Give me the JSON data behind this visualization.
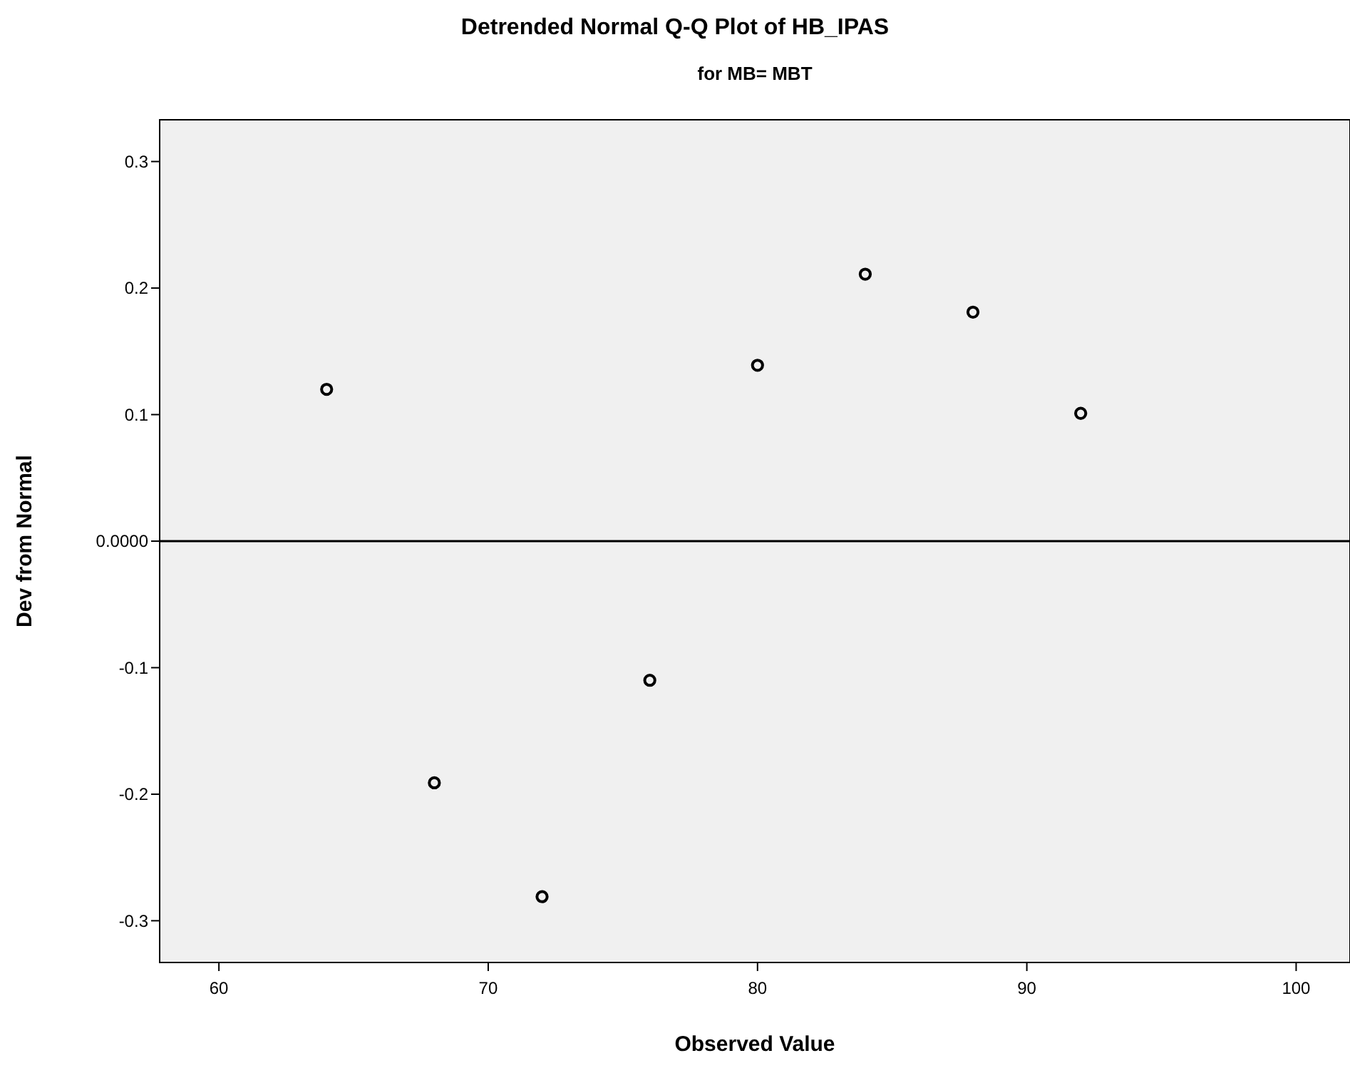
{
  "chart_data": {
    "type": "scatter",
    "title": "Detrended Normal Q-Q Plot of HB_IPAS",
    "subtitle": "for MB= MBT",
    "xlabel": "Observed Value",
    "ylabel": "Dev from Normal",
    "x": [
      64,
      68,
      72,
      76,
      80,
      84,
      88,
      92
    ],
    "series": [
      {
        "color": "#000000",
        "values": [
          0.12,
          -0.191,
          -0.281,
          -0.11,
          0.139,
          0.211,
          0.181,
          0.101
        ]
      }
    ],
    "xlim": [
      57.8,
      102
    ],
    "xticks": [
      60,
      70,
      80,
      90,
      100
    ],
    "ylim": [
      -0.333,
      0.333
    ],
    "yticks": [
      -0.3,
      -0.2,
      -0.1,
      {
        "value": 0,
        "label": "0.0000"
      },
      0.1,
      0.2,
      0.3
    ],
    "ref_lines": [
      {
        "axis": "y",
        "value": 0,
        "color": "#000000"
      }
    ],
    "marker": "circle",
    "grid": false
  }
}
